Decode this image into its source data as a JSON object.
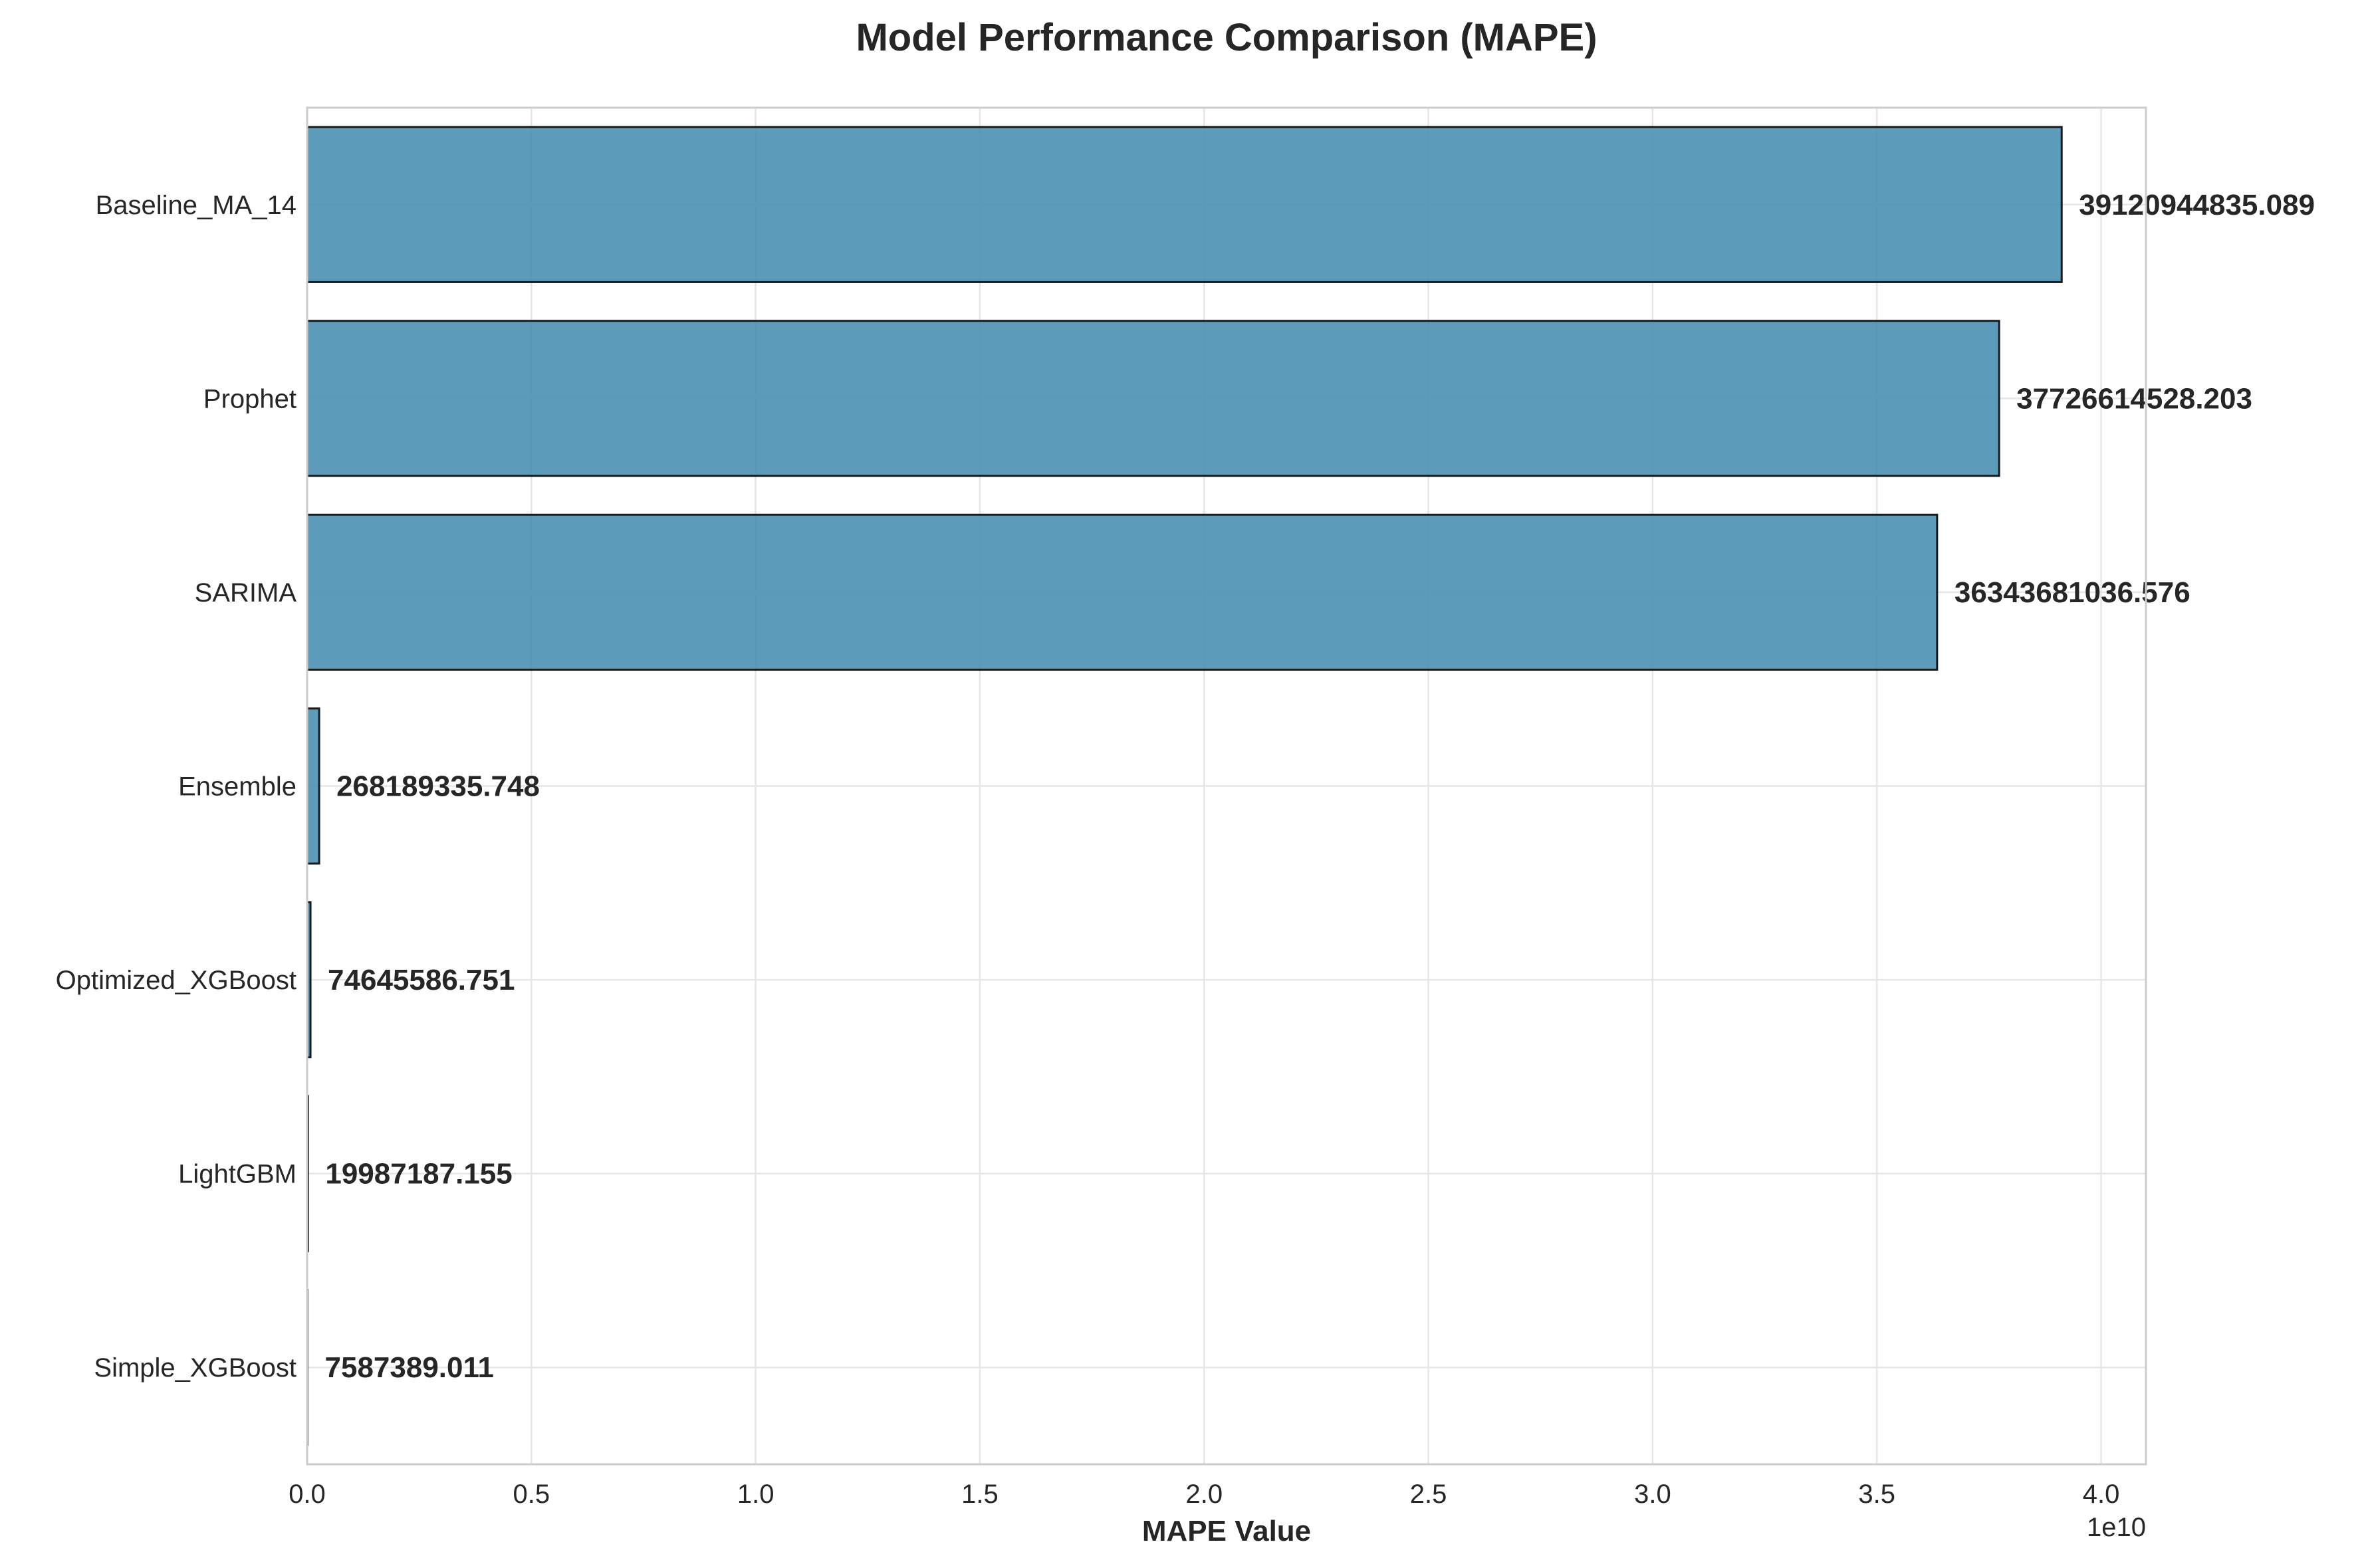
{
  "chart_data": {
    "type": "bar",
    "orientation": "horizontal",
    "title": "Model Performance Comparison (MAPE)",
    "xlabel": "MAPE Value",
    "ylabel": "",
    "x_offset_label": "1e10",
    "xlim": [
      0,
      41000000000
    ],
    "x_ticks": [
      0,
      5000000000,
      10000000000,
      15000000000,
      20000000000,
      25000000000,
      30000000000,
      35000000000,
      40000000000
    ],
    "x_tick_labels": [
      "0.0",
      "0.5",
      "1.0",
      "1.5",
      "2.0",
      "2.5",
      "3.0",
      "3.5",
      "4.0"
    ],
    "grid": true,
    "bar_color": "#4a90b2",
    "bar_edge_color": "#1a1a1a",
    "categories": [
      "Baseline_MA_14",
      "Prophet",
      "SARIMA",
      "Ensemble",
      "Optimized_XGBoost",
      "LightGBM",
      "Simple_XGBoost"
    ],
    "values": [
      39120944835.089,
      37726614528.203,
      36343681036.576,
      268189335.748,
      74645586.751,
      19987187.155,
      7587389.011
    ],
    "value_labels": [
      "39120944835.089",
      "37726614528.203",
      "36343681036.576",
      "268189335.748",
      "74645586.751",
      "19987187.155",
      "7587389.011"
    ]
  }
}
